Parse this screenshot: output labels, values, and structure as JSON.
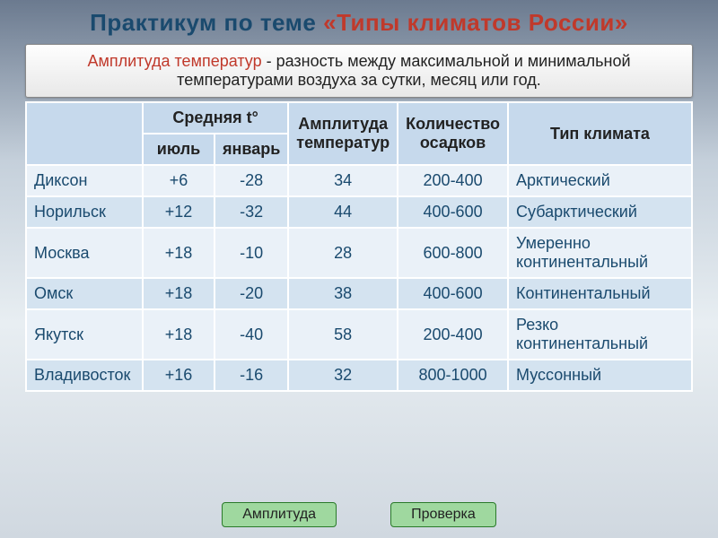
{
  "title": {
    "part1": "Практикум  по теме ",
    "part2": "«Типы климатов России»"
  },
  "definition": {
    "term": "Амплитуда температур",
    "text": " -  разность между максимальной и минимальной температурами воздуха за сутки, месяц или год."
  },
  "headers": {
    "avg_temp": "Средняя t°",
    "july": "июль",
    "january": "январь",
    "amplitude": "Амплитуда температур",
    "precip": "Количество осадков",
    "climate": "Тип климата"
  },
  "rows": [
    {
      "city": "Диксон",
      "july": "+6",
      "jan": "-28",
      "amp": "34",
      "prec": "200-400",
      "type": "Арктический",
      "cls": "odd"
    },
    {
      "city": "Норильск",
      "july": "+12",
      "jan": "-32",
      "amp": "44",
      "prec": "400-600",
      "type": "Субарктический",
      "cls": "even"
    },
    {
      "city": "Москва",
      "july": "+18",
      "jan": "-10",
      "amp": "28",
      "prec": "600-800",
      "type": "Умеренно континентальный",
      "cls": "odd"
    },
    {
      "city": "Омск",
      "july": "+18",
      "jan": "-20",
      "amp": "38",
      "prec": "400-600",
      "type": "Континентальный",
      "cls": "even"
    },
    {
      "city": "Якутск",
      "july": "+18",
      "jan": "-40",
      "amp": "58",
      "prec": "200-400",
      "type": "Резко континентальный",
      "cls": "odd"
    },
    {
      "city": "Владивосток",
      "july": "+16",
      "jan": "-16",
      "amp": "32",
      "prec": "800-1000",
      "type": "Муссонный",
      "cls": "even"
    }
  ],
  "buttons": {
    "amplitude": "Амплитуда",
    "check": "Проверка"
  },
  "colors": {
    "header_bg": "#c6d9ec",
    "row_odd": "#eaf1f8",
    "row_even": "#d4e3f0",
    "title_blue": "#1a4a6e",
    "title_red": "#c0392b",
    "btn_bg": "#9fd89f"
  }
}
